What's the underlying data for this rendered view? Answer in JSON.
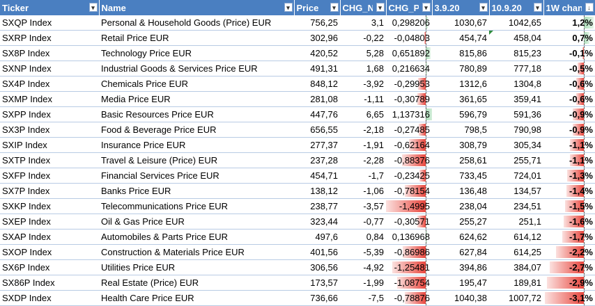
{
  "headers": [
    "Ticker",
    "Name",
    "Price",
    "CHG_N",
    "CHG_P",
    "3.9.20",
    "10.9.20",
    "1W chan"
  ],
  "rows": [
    {
      "ticker": "SXQP Index",
      "name": "Personal & Household Goods (Price) EUR",
      "price": "756,25",
      "chg_n": "3,1",
      "chg_p": "0,298206",
      "d1": "1030,67",
      "d2": "1042,65",
      "wk": "1,2%",
      "chg_p_val": 0.298206,
      "wk_val": 1.2
    },
    {
      "ticker": "SXRP Index",
      "name": "Retail Price EUR",
      "price": "302,96",
      "chg_n": "-0,22",
      "chg_p": "-0,04803",
      "d1": "454,74",
      "d2": "458,04",
      "wk": "0,7%",
      "chg_p_val": -0.04803,
      "wk_val": 0.7
    },
    {
      "ticker": "SX8P Index",
      "name": "Technology Price EUR",
      "price": "420,52",
      "chg_n": "5,28",
      "chg_p": "0,651892",
      "d1": "815,86",
      "d2": "815,23",
      "wk": "-0,1%",
      "chg_p_val": 0.651892,
      "wk_val": -0.1
    },
    {
      "ticker": "SXNP Index",
      "name": "Industrial Goods & Services Price EUR",
      "price": "491,31",
      "chg_n": "1,68",
      "chg_p": "0,216634",
      "d1": "780,89",
      "d2": "777,18",
      "wk": "-0,5%",
      "chg_p_val": 0.216634,
      "wk_val": -0.5
    },
    {
      "ticker": "SX4P Index",
      "name": "Chemicals Price EUR",
      "price": "848,12",
      "chg_n": "-3,92",
      "chg_p": "-0,29953",
      "d1": "1312,6",
      "d2": "1304,8",
      "wk": "-0,6%",
      "chg_p_val": -0.29953,
      "wk_val": -0.6
    },
    {
      "ticker": "SXMP Index",
      "name": "Media Price EUR",
      "price": "281,08",
      "chg_n": "-1,11",
      "chg_p": "-0,30789",
      "d1": "361,65",
      "d2": "359,41",
      "wk": "-0,6%",
      "chg_p_val": -0.30789,
      "wk_val": -0.6
    },
    {
      "ticker": "SXPP Index",
      "name": "Basic Resources Price EUR",
      "price": "447,76",
      "chg_n": "6,65",
      "chg_p": "1,137316",
      "d1": "596,79",
      "d2": "591,36",
      "wk": "-0,9%",
      "chg_p_val": 1.137316,
      "wk_val": -0.9
    },
    {
      "ticker": "SX3P Index",
      "name": "Food & Beverage Price EUR",
      "price": "656,55",
      "chg_n": "-2,18",
      "chg_p": "-0,27485",
      "d1": "798,5",
      "d2": "790,98",
      "wk": "-0,9%",
      "chg_p_val": -0.27485,
      "wk_val": -0.9
    },
    {
      "ticker": "SXIP Index",
      "name": "Insurance Price EUR",
      "price": "277,37",
      "chg_n": "-1,91",
      "chg_p": "-0,62164",
      "d1": "308,79",
      "d2": "305,34",
      "wk": "-1,1%",
      "chg_p_val": -0.62164,
      "wk_val": -1.1
    },
    {
      "ticker": "SXTP Index",
      "name": "Travel & Leisure (Price) EUR",
      "price": "237,28",
      "chg_n": "-2,28",
      "chg_p": "-0,88376",
      "d1": "258,61",
      "d2": "255,71",
      "wk": "-1,1%",
      "chg_p_val": -0.88376,
      "wk_val": -1.1
    },
    {
      "ticker": "SXFP Index",
      "name": "Financial Services Price EUR",
      "price": "454,71",
      "chg_n": "-1,7",
      "chg_p": "-0,23425",
      "d1": "733,45",
      "d2": "724,01",
      "wk": "-1,3%",
      "chg_p_val": -0.23425,
      "wk_val": -1.3
    },
    {
      "ticker": "SX7P Index",
      "name": "Banks Price EUR",
      "price": "138,12",
      "chg_n": "-1,06",
      "chg_p": "-0,78154",
      "d1": "136,48",
      "d2": "134,57",
      "wk": "-1,4%",
      "chg_p_val": -0.78154,
      "wk_val": -1.4
    },
    {
      "ticker": "SXKP Index",
      "name": "Telecommunications Price EUR",
      "price": "238,77",
      "chg_n": "-3,57",
      "chg_p": "-1,4995",
      "d1": "238,04",
      "d2": "234,51",
      "wk": "-1,5%",
      "chg_p_val": -1.4995,
      "wk_val": -1.5
    },
    {
      "ticker": "SXEP Index",
      "name": "Oil & Gas Price EUR",
      "price": "323,44",
      "chg_n": "-0,77",
      "chg_p": "-0,30571",
      "d1": "255,27",
      "d2": "251,1",
      "wk": "-1,6%",
      "chg_p_val": -0.30571,
      "wk_val": -1.6
    },
    {
      "ticker": "SXAP Index",
      "name": "Automobiles & Parts Price EUR",
      "price": "497,6",
      "chg_n": "0,84",
      "chg_p": "0,136968",
      "d1": "624,62",
      "d2": "614,12",
      "wk": "-1,7%",
      "chg_p_val": 0.136968,
      "wk_val": -1.7
    },
    {
      "ticker": "SXOP Index",
      "name": "Construction & Materials Price EUR",
      "price": "401,56",
      "chg_n": "-5,39",
      "chg_p": "-0,86986",
      "d1": "627,84",
      "d2": "614,25",
      "wk": "-2,2%",
      "chg_p_val": -0.86986,
      "wk_val": -2.2
    },
    {
      "ticker": "SX6P Index",
      "name": "Utilities Price EUR",
      "price": "306,56",
      "chg_n": "-4,92",
      "chg_p": "-1,25481",
      "d1": "394,86",
      "d2": "384,07",
      "wk": "-2,7%",
      "chg_p_val": -1.25481,
      "wk_val": -2.7
    },
    {
      "ticker": "SX86P Index",
      "name": "Real Estate (Price) EUR",
      "price": "173,57",
      "chg_n": "-1,99",
      "chg_p": "-1,08754",
      "d1": "195,47",
      "d2": "189,81",
      "wk": "-2,9%",
      "chg_p_val": -1.08754,
      "wk_val": -2.9
    },
    {
      "ticker": "SXDP Index",
      "name": "Health Care Price EUR",
      "price": "736,66",
      "chg_n": "-7,5",
      "chg_p": "-0,78876",
      "d1": "1040,38",
      "d2": "1007,72",
      "wk": "-3,1%",
      "chg_p_val": -0.78876,
      "wk_val": -3.1
    }
  ],
  "colors": {
    "header_bg": "#4a7fc1",
    "positive_bar": "#a9dcb7",
    "negative_bar": "#e8463d",
    "row_border": "#b8cbe4"
  }
}
